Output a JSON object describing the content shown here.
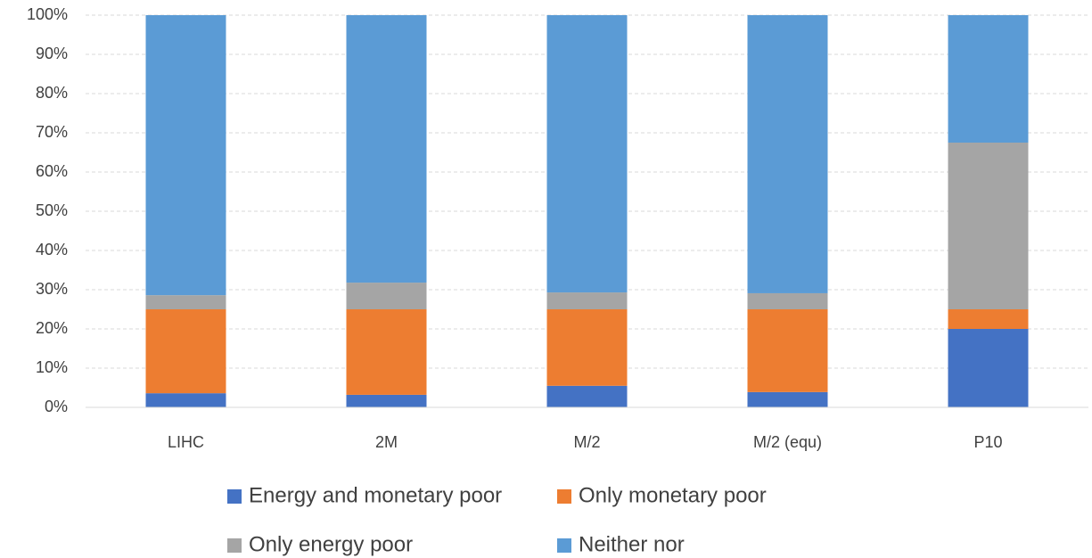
{
  "chart_data": {
    "type": "stacked_bar",
    "categories": [
      "LIHC",
      "2M",
      "M/2",
      "M/2 (equ)",
      "P10"
    ],
    "series": [
      {
        "name": "Energy and monetary poor",
        "color": "#4472c4",
        "values": [
          3.6,
          3.2,
          5.5,
          3.9,
          20
        ]
      },
      {
        "name": "Only monetary poor",
        "color": "#ed7d31",
        "values": [
          21.4,
          21.8,
          19.5,
          21.1,
          5
        ]
      },
      {
        "name": "Only energy poor",
        "color": "#a5a5a5",
        "values": [
          3.6,
          6.8,
          4.3,
          4.1,
          42.5
        ]
      },
      {
        "name": "Neither nor",
        "color": "#5b9bd5",
        "values": [
          71.4,
          68.2,
          70.7,
          70.9,
          32.5
        ]
      }
    ],
    "ylim": [
      0,
      100
    ],
    "yticks": [
      {
        "value": 0,
        "label": "0%"
      },
      {
        "value": 10,
        "label": "10%"
      },
      {
        "value": 20,
        "label": "20%"
      },
      {
        "value": 30,
        "label": "30%"
      },
      {
        "value": 40,
        "label": "40%"
      },
      {
        "value": 50,
        "label": "50%"
      },
      {
        "value": 60,
        "label": "60%"
      },
      {
        "value": 70,
        "label": "70%"
      },
      {
        "value": 80,
        "label": "80%"
      },
      {
        "value": 90,
        "label": "90%"
      },
      {
        "value": 100,
        "label": "100%"
      }
    ],
    "grid": true,
    "legend": "bottom"
  }
}
